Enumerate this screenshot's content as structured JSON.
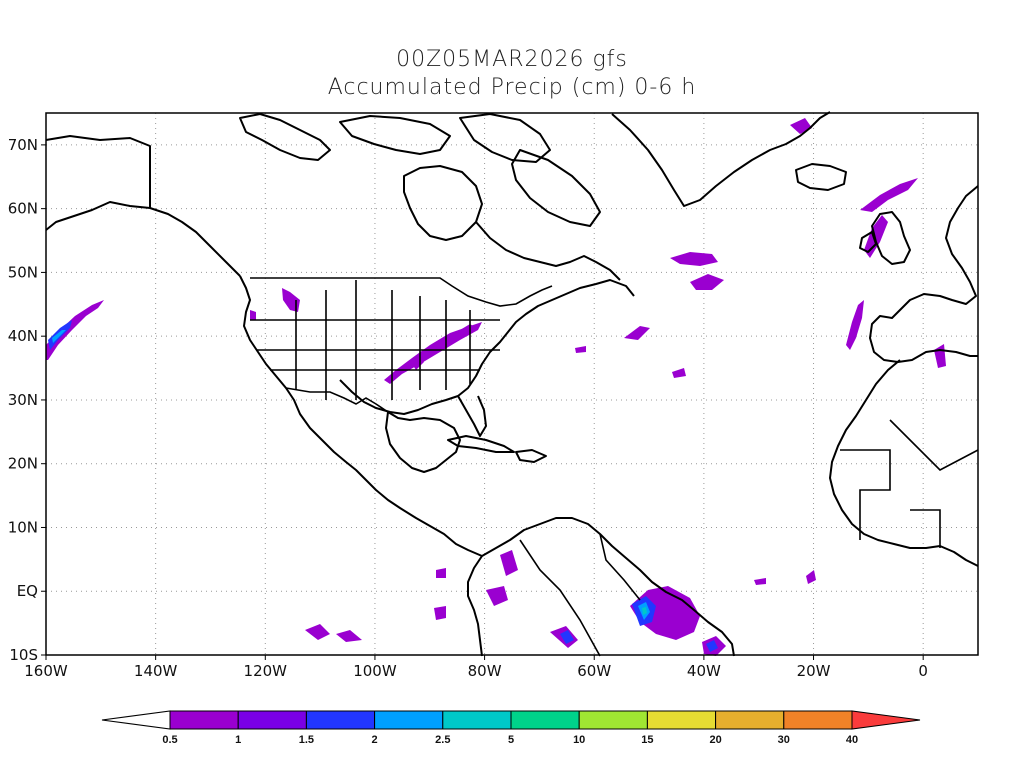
{
  "title": {
    "line1": "00Z05MAR2026 gfs",
    "line2": "Accumulated Precip (cm) 0-6 h"
  },
  "axes": {
    "x_ticks": [
      {
        "lon": -160,
        "label": "160W"
      },
      {
        "lon": -140,
        "label": "140W"
      },
      {
        "lon": -120,
        "label": "120W"
      },
      {
        "lon": -100,
        "label": "100W"
      },
      {
        "lon": -80,
        "label": "80W"
      },
      {
        "lon": -60,
        "label": "60W"
      },
      {
        "lon": -40,
        "label": "40W"
      },
      {
        "lon": -20,
        "label": "20W"
      },
      {
        "lon": 0,
        "label": "0"
      }
    ],
    "y_ticks": [
      {
        "lat": 70,
        "label": "70N"
      },
      {
        "lat": 60,
        "label": "60N"
      },
      {
        "lat": 50,
        "label": "50N"
      },
      {
        "lat": 40,
        "label": "40N"
      },
      {
        "lat": 30,
        "label": "30N"
      },
      {
        "lat": 20,
        "label": "20N"
      },
      {
        "lat": 10,
        "label": "10N"
      },
      {
        "lat": 0,
        "label": "EQ"
      },
      {
        "lat": -10,
        "label": "10S"
      }
    ],
    "lon_range": [
      -160,
      10
    ],
    "lat_range": [
      -10,
      75
    ],
    "grid": "dotted"
  },
  "colorbar": {
    "labels": [
      "0.5",
      "1",
      "1.5",
      "2",
      "2.5",
      "5",
      "10",
      "15",
      "20",
      "30",
      "40"
    ],
    "colors": [
      "#9a00d0",
      "#7a00e6",
      "#2236ff",
      "#00a0ff",
      "#00c8c8",
      "#00d28a",
      "#a0e632",
      "#e6dc32",
      "#e6af2d",
      "#f08228",
      "#fa3c3c"
    ]
  },
  "precip_areas": [
    {
      "name": "pacific-west",
      "lon": -158,
      "lat": 40,
      "level": 1
    },
    {
      "name": "pacific-west-core",
      "lon": -159,
      "lat": 39.5,
      "level": 3
    },
    {
      "name": "idaho",
      "lon": -114,
      "lat": 46,
      "level": 0
    },
    {
      "name": "ohio-valley-band",
      "lon": -88,
      "lat": 37,
      "level": 0
    },
    {
      "name": "atlantic-north",
      "lon": -38,
      "lat": 50,
      "level": 0
    },
    {
      "name": "uk-band",
      "lon": -10,
      "lat": 55,
      "level": 0
    },
    {
      "name": "iberia-west",
      "lon": -13,
      "lat": 42,
      "level": 0
    },
    {
      "name": "amazon-delta",
      "lon": -48,
      "lat": -3,
      "level": 1
    },
    {
      "name": "amazon-core",
      "lon": -50,
      "lat": -4,
      "level": 3
    }
  ]
}
